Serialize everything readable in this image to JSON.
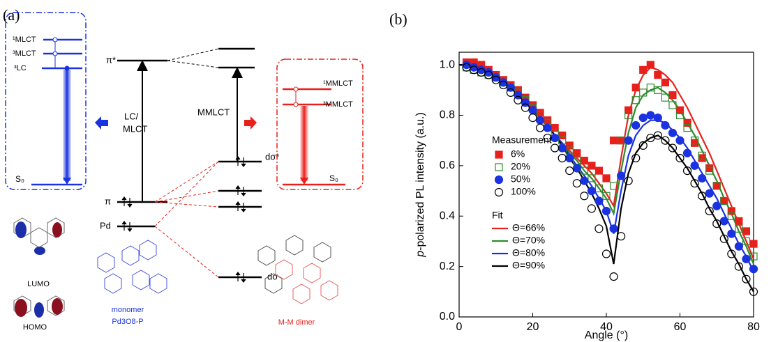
{
  "diagram": {
    "panel_label": "(a)",
    "monomer_levels": [
      "¹MLCT",
      "³MLCT",
      "³LC"
    ],
    "monomer_ground": "S₀",
    "pi_star": "π*",
    "pi": "π",
    "pd": "Pd",
    "lc_mlct": [
      "LC/",
      "MLCT"
    ],
    "mmlct": "MMLCT",
    "d_sigma_star": "dσ*",
    "d_sigma": "dσ",
    "dimer_levels": [
      "¹MMLCT",
      "³MMLCT"
    ],
    "dimer_ground": "S₀",
    "lumo": "LUMO",
    "homo": "HOMO",
    "monomer": "monomer",
    "monomer_name": "Pd3O8-P",
    "dimer": "M-M dimer"
  },
  "chart_data": {
    "type": "scatter",
    "panel_label": "(b)",
    "x_label": "Angle (°)",
    "y_label_italic": "p",
    "y_label": "-polarized PL intensity (a.u.)",
    "measurement_title": "Measurement",
    "fit_title": "Fit",
    "xlim": [
      0,
      80
    ],
    "xticks": [
      0,
      20,
      40,
      60,
      80
    ],
    "ylim": [
      0,
      1.05
    ],
    "yticks": [
      {
        "value": 0,
        "label": "0.0"
      },
      0.2,
      0.4,
      0.6,
      0.8,
      {
        "value": 1,
        "label": "1.0"
      }
    ],
    "series": [
      {
        "name": "6%",
        "type": "scatter",
        "marker": "square",
        "filled": true,
        "color": "#e8201c",
        "x": [
          2,
          4,
          6,
          8,
          10,
          12,
          14,
          16,
          18,
          20,
          22,
          24,
          26,
          28,
          30,
          32,
          34,
          36,
          38,
          40,
          42,
          44,
          46,
          48,
          50,
          52,
          54,
          56,
          58,
          60,
          62,
          64,
          66,
          68,
          70,
          72,
          74,
          76,
          78,
          80
        ],
        "values": [
          1.01,
          1.01,
          1.0,
          0.98,
          0.96,
          0.94,
          0.92,
          0.9,
          0.87,
          0.84,
          0.81,
          0.78,
          0.75,
          0.72,
          0.68,
          0.65,
          0.62,
          0.6,
          0.58,
          0.55,
          0.7,
          0.7,
          0.82,
          0.91,
          0.98,
          1.0,
          0.96,
          0.93,
          0.88,
          0.82,
          0.77,
          0.69,
          0.63,
          0.59,
          0.52,
          0.46,
          0.42,
          0.38,
          0.34,
          0.29
        ]
      },
      {
        "name": "20%",
        "type": "scatter",
        "marker": "square",
        "filled": false,
        "color": "#2e8b2e",
        "x": [
          2,
          4,
          6,
          8,
          10,
          12,
          14,
          16,
          18,
          20,
          22,
          24,
          26,
          28,
          30,
          32,
          34,
          36,
          38,
          40,
          42,
          44,
          46,
          48,
          50,
          52,
          54,
          56,
          58,
          60,
          62,
          64,
          66,
          68,
          70,
          72,
          74,
          76,
          78,
          80
        ],
        "values": [
          0.99,
          0.98,
          0.97,
          0.96,
          0.95,
          0.93,
          0.91,
          0.89,
          0.86,
          0.83,
          0.8,
          0.77,
          0.73,
          0.7,
          0.66,
          0.62,
          0.58,
          0.55,
          0.51,
          0.48,
          0.52,
          0.7,
          0.8,
          0.86,
          0.89,
          0.91,
          0.9,
          0.87,
          0.84,
          0.8,
          0.75,
          0.7,
          0.64,
          0.58,
          0.52,
          0.46,
          0.4,
          0.35,
          0.3,
          0.24
        ]
      },
      {
        "name": "50%",
        "type": "scatter",
        "marker": "circle",
        "filled": true,
        "color": "#1a32e0",
        "x": [
          2,
          4,
          6,
          8,
          10,
          12,
          14,
          16,
          18,
          20,
          22,
          24,
          26,
          28,
          30,
          32,
          34,
          36,
          38,
          40,
          42,
          44,
          46,
          48,
          50,
          52,
          54,
          56,
          58,
          60,
          62,
          64,
          66,
          68,
          70,
          72,
          74,
          76,
          78,
          80
        ],
        "values": [
          1.0,
          0.99,
          0.98,
          0.97,
          0.95,
          0.93,
          0.91,
          0.88,
          0.85,
          0.82,
          0.78,
          0.75,
          0.71,
          0.67,
          0.63,
          0.59,
          0.54,
          0.5,
          0.46,
          0.42,
          0.35,
          0.56,
          0.7,
          0.76,
          0.79,
          0.8,
          0.79,
          0.76,
          0.73,
          0.7,
          0.65,
          0.6,
          0.55,
          0.49,
          0.44,
          0.38,
          0.33,
          0.28,
          0.23,
          0.19
        ]
      },
      {
        "name": "100%",
        "type": "scatter",
        "marker": "circle",
        "filled": false,
        "color": "#000000",
        "x": [
          2,
          4,
          6,
          8,
          10,
          12,
          14,
          16,
          18,
          20,
          22,
          24,
          26,
          28,
          30,
          32,
          34,
          36,
          38,
          40,
          42,
          44,
          46,
          48,
          50,
          52,
          54,
          56,
          58,
          60,
          62,
          64,
          66,
          68,
          70,
          72,
          74,
          76,
          78,
          80
        ],
        "values": [
          0.99,
          0.98,
          0.97,
          0.96,
          0.94,
          0.92,
          0.89,
          0.86,
          0.83,
          0.79,
          0.75,
          0.71,
          0.67,
          0.63,
          0.58,
          0.53,
          0.48,
          0.43,
          0.35,
          0.25,
          0.16,
          0.32,
          0.54,
          0.63,
          0.68,
          0.71,
          0.72,
          0.7,
          0.67,
          0.63,
          0.58,
          0.53,
          0.48,
          0.42,
          0.37,
          0.31,
          0.25,
          0.2,
          0.15,
          0.1
        ]
      },
      {
        "name": "Θ=66%",
        "type": "line",
        "color": "#e8201c",
        "x": [
          0,
          2,
          4,
          6,
          8,
          10,
          12,
          14,
          16,
          18,
          20,
          22,
          24,
          26,
          28,
          30,
          32,
          34,
          36,
          38,
          40,
          42,
          44,
          46,
          48,
          50,
          52,
          54,
          56,
          58,
          60,
          62,
          64,
          66,
          68,
          70,
          72,
          74,
          76,
          78,
          80
        ],
        "values": [
          1.0,
          1.0,
          0.99,
          0.98,
          0.97,
          0.95,
          0.93,
          0.91,
          0.88,
          0.85,
          0.82,
          0.79,
          0.76,
          0.72,
          0.69,
          0.66,
          0.63,
          0.6,
          0.57,
          0.53,
          0.49,
          0.44,
          0.63,
          0.8,
          0.9,
          0.96,
          0.99,
          0.98,
          0.96,
          0.93,
          0.88,
          0.83,
          0.77,
          0.71,
          0.65,
          0.58,
          0.51,
          0.44,
          0.37,
          0.3,
          0.23
        ]
      },
      {
        "name": "Θ=70%",
        "type": "line",
        "color": "#2e8b2e",
        "x": [
          0,
          2,
          4,
          6,
          8,
          10,
          12,
          14,
          16,
          18,
          20,
          22,
          24,
          26,
          28,
          30,
          32,
          34,
          36,
          38,
          40,
          42,
          44,
          46,
          48,
          50,
          52,
          54,
          56,
          58,
          60,
          62,
          64,
          66,
          68,
          70,
          72,
          74,
          76,
          78,
          80
        ],
        "values": [
          1.0,
          1.0,
          0.99,
          0.98,
          0.97,
          0.95,
          0.93,
          0.91,
          0.88,
          0.85,
          0.82,
          0.79,
          0.76,
          0.72,
          0.69,
          0.65,
          0.62,
          0.58,
          0.55,
          0.51,
          0.47,
          0.41,
          0.58,
          0.73,
          0.83,
          0.88,
          0.9,
          0.91,
          0.89,
          0.86,
          0.82,
          0.77,
          0.72,
          0.66,
          0.6,
          0.54,
          0.47,
          0.41,
          0.34,
          0.28,
          0.21
        ]
      },
      {
        "name": "Θ=80%",
        "type": "line",
        "color": "#1a32e0",
        "x": [
          0,
          2,
          4,
          6,
          8,
          10,
          12,
          14,
          16,
          18,
          20,
          22,
          24,
          26,
          28,
          30,
          32,
          34,
          36,
          38,
          40,
          42,
          44,
          46,
          48,
          50,
          52,
          54,
          56,
          58,
          60,
          62,
          64,
          66,
          68,
          70,
          72,
          74,
          76,
          78,
          80
        ],
        "values": [
          1.0,
          1.0,
          0.99,
          0.98,
          0.97,
          0.95,
          0.93,
          0.91,
          0.88,
          0.85,
          0.82,
          0.79,
          0.76,
          0.72,
          0.69,
          0.64,
          0.6,
          0.56,
          0.52,
          0.47,
          0.42,
          0.33,
          0.5,
          0.64,
          0.72,
          0.76,
          0.78,
          0.78,
          0.77,
          0.74,
          0.71,
          0.67,
          0.62,
          0.57,
          0.52,
          0.47,
          0.41,
          0.35,
          0.29,
          0.24,
          0.18
        ]
      },
      {
        "name": "Θ=90%",
        "type": "line",
        "color": "#000000",
        "x": [
          0,
          2,
          4,
          6,
          8,
          10,
          12,
          14,
          16,
          18,
          20,
          22,
          24,
          26,
          28,
          30,
          32,
          34,
          36,
          38,
          40,
          42,
          44,
          46,
          48,
          50,
          52,
          54,
          56,
          58,
          60,
          62,
          64,
          66,
          68,
          70,
          72,
          74,
          76,
          78,
          80
        ],
        "values": [
          1.0,
          1.0,
          0.99,
          0.98,
          0.97,
          0.95,
          0.93,
          0.91,
          0.88,
          0.85,
          0.82,
          0.79,
          0.76,
          0.72,
          0.68,
          0.63,
          0.59,
          0.54,
          0.49,
          0.43,
          0.36,
          0.21,
          0.43,
          0.57,
          0.65,
          0.69,
          0.71,
          0.72,
          0.7,
          0.67,
          0.63,
          0.59,
          0.54,
          0.49,
          0.43,
          0.38,
          0.32,
          0.26,
          0.21,
          0.15,
          0.1
        ]
      }
    ]
  }
}
